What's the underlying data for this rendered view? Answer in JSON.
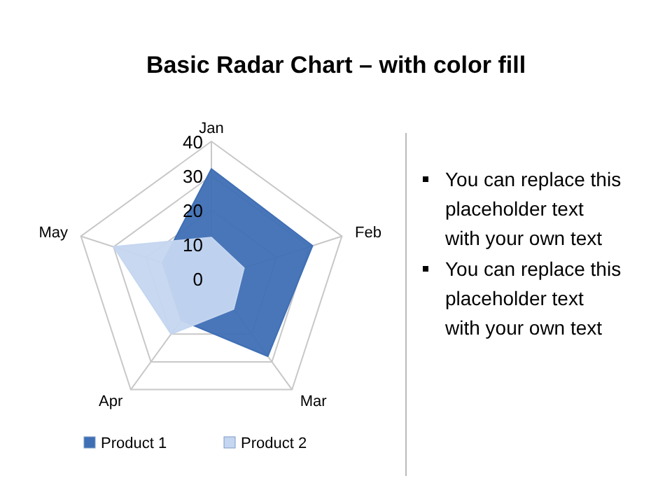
{
  "chart_data": [
    {
      "type": "radar",
      "title": "Basic Radar Chart – with color fill",
      "categories": [
        "Jan",
        "Feb",
        "Mar",
        "Apr",
        "May"
      ],
      "ylim": [
        0,
        40
      ],
      "yticks": [
        0,
        10,
        20,
        30,
        40
      ],
      "grid": true,
      "legend": "bottom",
      "series": [
        {
          "name": "Product 1",
          "color": "#3f6fb5",
          "values": [
            32,
            31,
            28,
            15,
            15
          ]
        },
        {
          "name": "Product 2",
          "color": "#c5d6f0",
          "values": [
            12,
            10,
            11,
            20,
            30
          ]
        }
      ]
    },
    {
      "type": "other",
      "annotations": [
        "You can replace this placeholder text with your own text",
        "You can replace this placeholder text with your own text"
      ]
    }
  ]
}
